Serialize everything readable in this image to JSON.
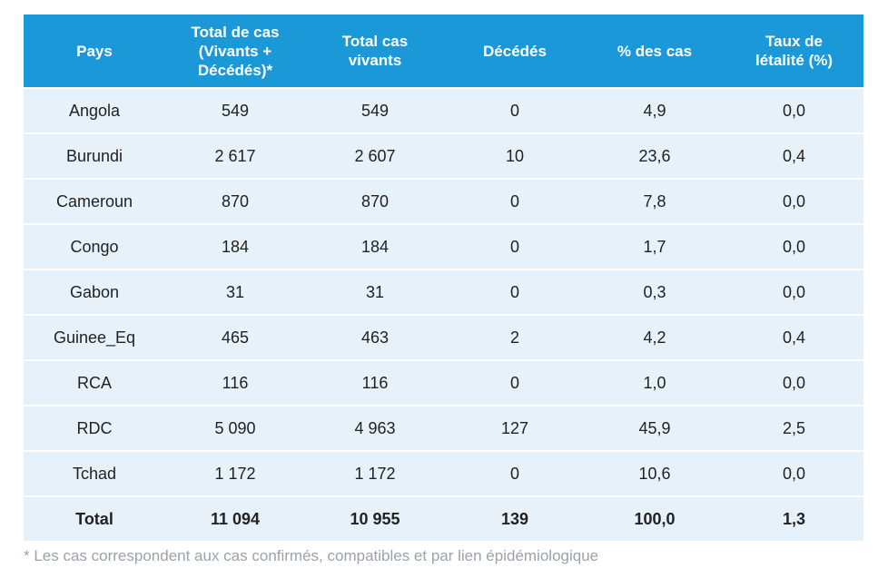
{
  "table": {
    "headers": [
      "Pays",
      "Total de cas\n(Vivants +\nDécédés)*",
      "Total cas\nvivants",
      "Décédés",
      "% des cas",
      "Taux de\nlétalité (%)"
    ],
    "rows": [
      [
        "Angola",
        "549",
        "549",
        "0",
        "4,9",
        "0,0"
      ],
      [
        "Burundi",
        "2 617",
        "2 607",
        "10",
        "23,6",
        "0,4"
      ],
      [
        "Cameroun",
        "870",
        "870",
        "0",
        "7,8",
        "0,0"
      ],
      [
        "Congo",
        "184",
        "184",
        "0",
        "1,7",
        "0,0"
      ],
      [
        "Gabon",
        "31",
        "31",
        "0",
        "0,3",
        "0,0"
      ],
      [
        "Guinee_Eq",
        "465",
        "463",
        "2",
        "4,2",
        "0,4"
      ],
      [
        "RCA",
        "116",
        "116",
        "0",
        "1,0",
        "0,0"
      ],
      [
        "RDC",
        "5 090",
        "4 963",
        "127",
        "45,9",
        "2,5"
      ],
      [
        "Tchad",
        "1 172",
        "1 172",
        "0",
        "10,6",
        "0,0"
      ]
    ],
    "total": [
      "Total",
      "11 094",
      "10 955",
      "139",
      "100,0",
      "1,3"
    ]
  },
  "footnote": "* Les cas correspondent aux cas confirmés, compatibles et par lien épidémiologique",
  "colors": {
    "header_bg": "#1a98d8",
    "row_bg": "#e6f1f9",
    "footnote": "#9aa3aa"
  }
}
